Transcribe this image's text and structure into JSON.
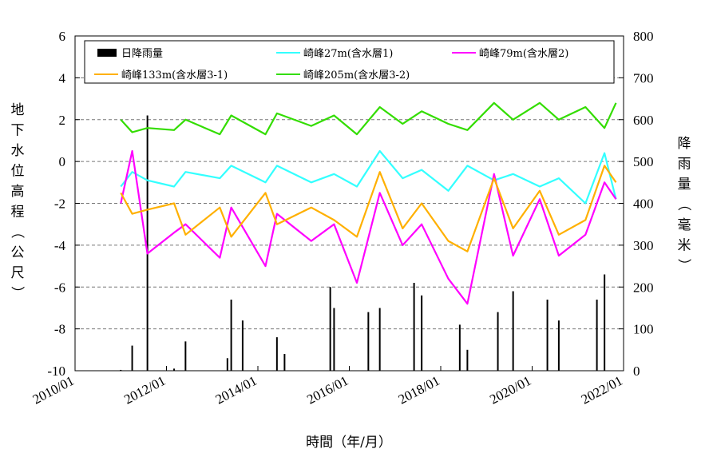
{
  "chart_data": {
    "type": "line",
    "xlabel": "時間（年/月）",
    "ylabel": "地下水位高程（公尺）",
    "y2label": "降雨量（毫米）",
    "x_ticks": [
      "2010/01",
      "2012/01",
      "2014/01",
      "2016/01",
      "2018/01",
      "2020/01",
      "2022/01"
    ],
    "xlim": [
      "2010-01",
      "2022-01"
    ],
    "ylim": [
      -10,
      6
    ],
    "y_ticks": [
      "-10",
      "-8",
      "-6",
      "-4",
      "-2",
      "0",
      "2",
      "4",
      "6"
    ],
    "y2lim": [
      0,
      800
    ],
    "y2_ticks": [
      "0",
      "100",
      "200",
      "300",
      "400",
      "500",
      "600",
      "700",
      "800"
    ],
    "grid": "horizontal dashed",
    "legend_position": "top",
    "series": [
      {
        "name": "日降雨量",
        "type": "bar",
        "axis": "right",
        "color": "#000000",
        "x": [
          "2011-01",
          "2011-04",
          "2011-08",
          "2012-03",
          "2012-06",
          "2013-05",
          "2013-06",
          "2013-09",
          "2014-06",
          "2014-08",
          "2015-08",
          "2015-09",
          "2016-06",
          "2016-09",
          "2017-06",
          "2017-08",
          "2018-06",
          "2018-08",
          "2019-04",
          "2019-08",
          "2020-05",
          "2020-08",
          "2021-06",
          "2021-08"
        ],
        "values": [
          2,
          60,
          610,
          5,
          70,
          30,
          170,
          120,
          80,
          40,
          200,
          150,
          140,
          150,
          210,
          180,
          110,
          50,
          140,
          190,
          170,
          120,
          170,
          230
        ]
      },
      {
        "name": "崎峰27m(含水層1)",
        "axis": "left",
        "color": "#33FFFF",
        "x": [
          "2011-01",
          "2011-04",
          "2011-08",
          "2012-03",
          "2012-06",
          "2013-03",
          "2013-06",
          "2014-03",
          "2014-06",
          "2015-03",
          "2015-09",
          "2016-03",
          "2016-09",
          "2017-03",
          "2017-08",
          "2018-03",
          "2018-08",
          "2019-03",
          "2019-08",
          "2020-03",
          "2020-08",
          "2021-03",
          "2021-08",
          "2021-11"
        ],
        "values": [
          -1.2,
          -0.5,
          -0.9,
          -1.2,
          -0.5,
          -0.8,
          -0.2,
          -1.0,
          -0.2,
          -1.0,
          -0.6,
          -1.2,
          0.5,
          -0.8,
          -0.4,
          -1.4,
          -0.2,
          -0.9,
          -0.6,
          -1.2,
          -0.8,
          -2.0,
          0.4,
          -1.8
        ]
      },
      {
        "name": "崎峰79m(含水層2)",
        "axis": "left",
        "color": "#FF00FF",
        "x": [
          "2011-01",
          "2011-04",
          "2011-08",
          "2012-03",
          "2012-06",
          "2013-03",
          "2013-06",
          "2014-03",
          "2014-06",
          "2015-03",
          "2015-09",
          "2016-03",
          "2016-09",
          "2017-03",
          "2017-08",
          "2018-03",
          "2018-08",
          "2019-03",
          "2019-08",
          "2020-03",
          "2020-08",
          "2021-03",
          "2021-08",
          "2021-11"
        ],
        "values": [
          -2.0,
          0.5,
          -4.4,
          -3.4,
          -3.0,
          -4.6,
          -2.2,
          -5.0,
          -2.5,
          -3.8,
          -3.0,
          -5.8,
          -1.5,
          -4.0,
          -3.0,
          -5.6,
          -6.8,
          -0.6,
          -4.5,
          -1.8,
          -4.5,
          -3.5,
          -1.0,
          -1.8
        ]
      },
      {
        "name": "崎峰133m(含水層3-1)",
        "axis": "left",
        "color": "#FFB000",
        "x": [
          "2011-01",
          "2011-04",
          "2011-08",
          "2012-03",
          "2012-06",
          "2013-03",
          "2013-06",
          "2014-03",
          "2014-06",
          "2015-03",
          "2015-09",
          "2016-03",
          "2016-09",
          "2017-03",
          "2017-08",
          "2018-03",
          "2018-08",
          "2019-03",
          "2019-08",
          "2020-03",
          "2020-08",
          "2021-03",
          "2021-08",
          "2021-11"
        ],
        "values": [
          -1.5,
          -2.5,
          -2.3,
          -2.0,
          -3.5,
          -2.2,
          -3.6,
          -1.5,
          -3.0,
          -2.2,
          -2.8,
          -3.6,
          -0.5,
          -3.2,
          -2.0,
          -3.8,
          -4.3,
          -0.8,
          -3.2,
          -1.4,
          -3.5,
          -2.8,
          -0.2,
          -1.0
        ]
      },
      {
        "name": "崎峰205m(含水層3-2)",
        "axis": "left",
        "color": "#33DD00",
        "x": [
          "2011-01",
          "2011-04",
          "2011-08",
          "2012-03",
          "2012-06",
          "2013-03",
          "2013-06",
          "2014-03",
          "2014-06",
          "2015-03",
          "2015-09",
          "2016-03",
          "2016-09",
          "2017-03",
          "2017-08",
          "2018-03",
          "2018-08",
          "2019-03",
          "2019-08",
          "2020-03",
          "2020-08",
          "2021-03",
          "2021-08",
          "2021-11"
        ],
        "values": [
          2.0,
          1.4,
          1.6,
          1.5,
          2.0,
          1.3,
          2.2,
          1.3,
          2.3,
          1.7,
          2.2,
          1.3,
          2.6,
          1.8,
          2.4,
          1.8,
          1.5,
          2.8,
          2.0,
          2.8,
          2.0,
          2.6,
          1.6,
          2.8
        ]
      }
    ]
  }
}
